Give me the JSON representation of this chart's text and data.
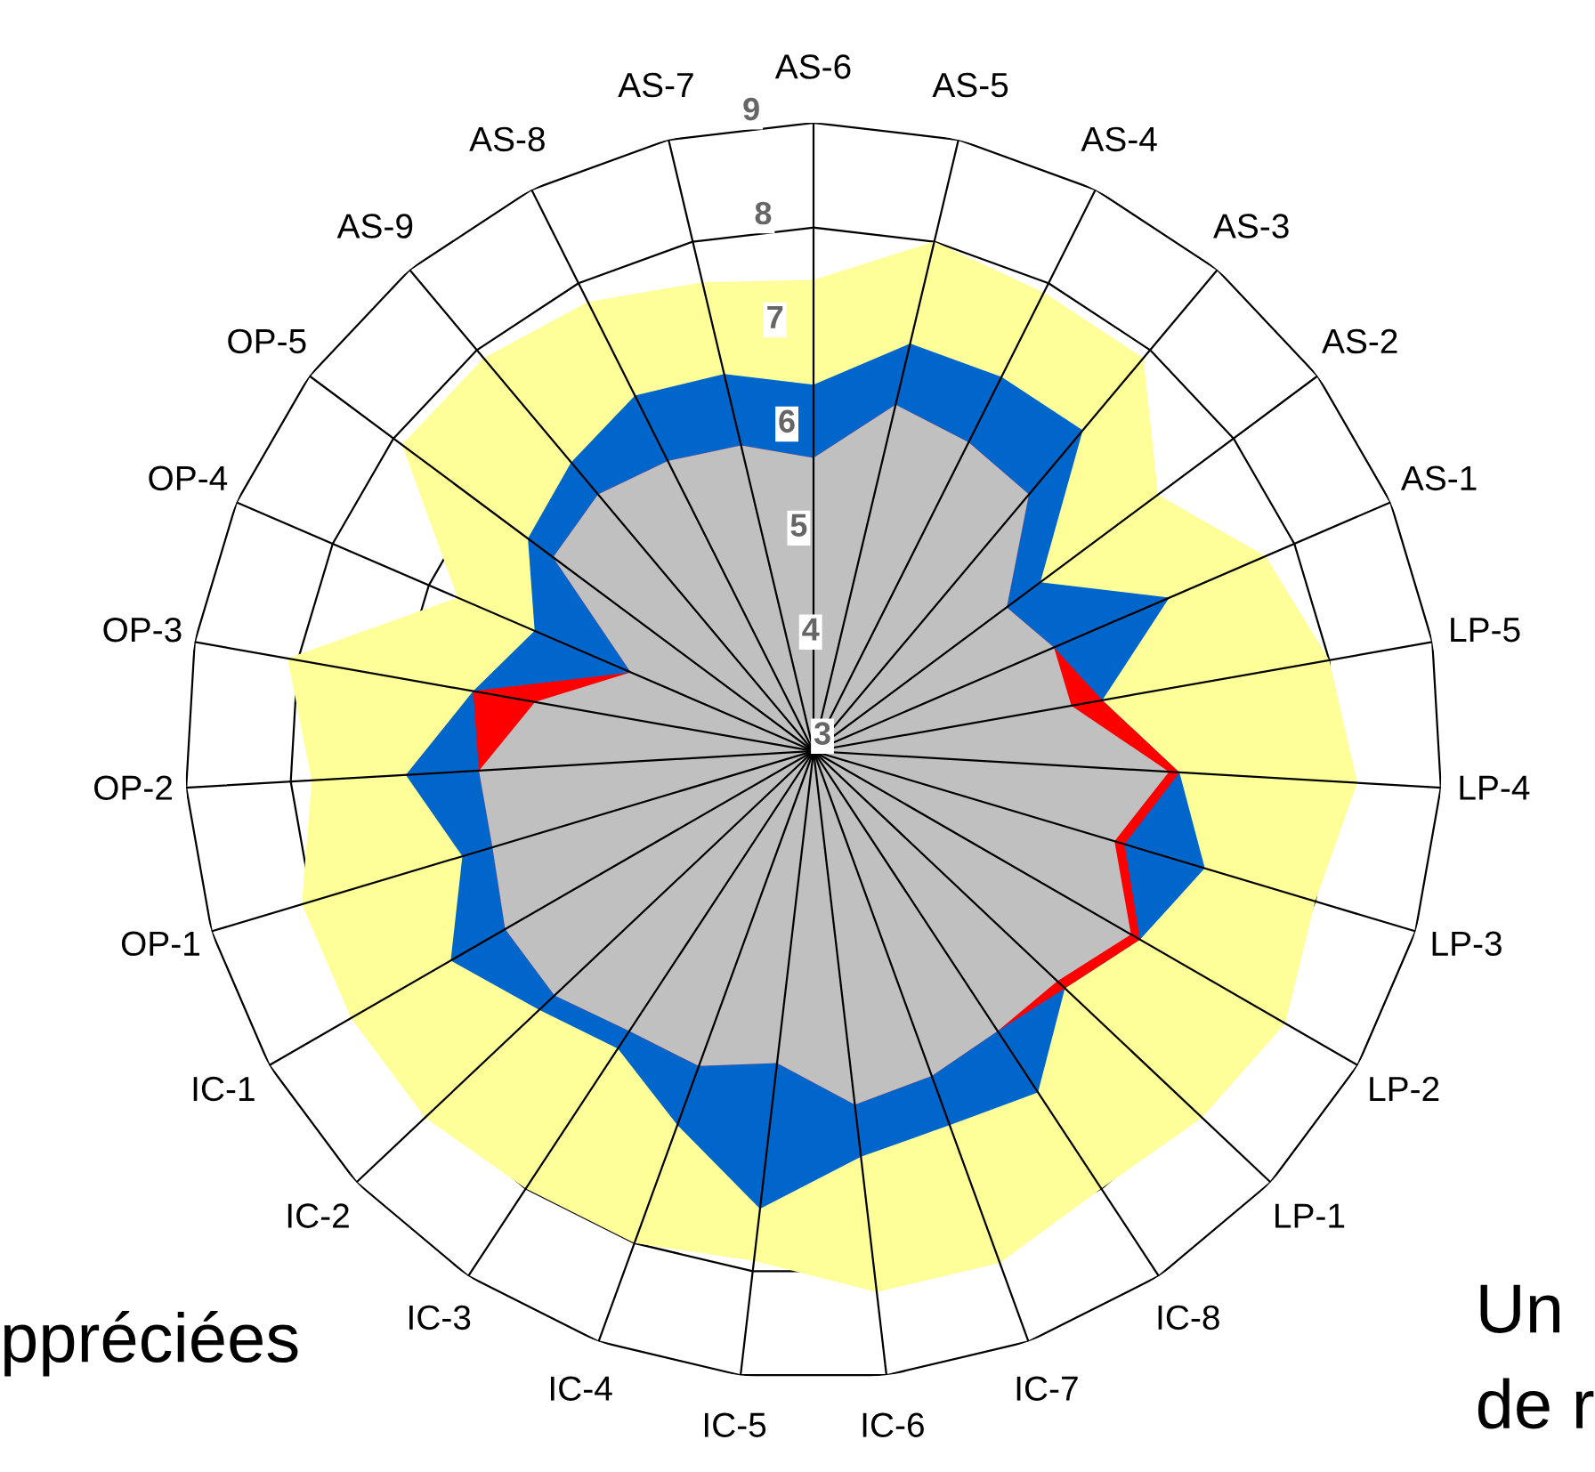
{
  "chart_data": {
    "type": "radar",
    "categories": [
      "AS-6",
      "AS-5",
      "AS-4",
      "AS-3",
      "AS-2",
      "AS-1",
      "LP-5",
      "LP-4",
      "LP-3",
      "LP-2",
      "LP-1",
      "IC-8",
      "IC-7",
      "IC-6",
      "IC-5",
      "IC-4",
      "IC-3",
      "IC-2",
      "IC-1",
      "OP-1",
      "OP-2",
      "OP-3",
      "OP-4",
      "OP-5",
      "AS-9",
      "AS-8",
      "AS-7"
    ],
    "series": [
      {
        "color": "#ffff99",
        "values": [
          7.5,
          8.0,
          7.9,
          7.9,
          7.1,
          7.7,
          8.0,
          8.2,
          8.0,
          8.2,
          8.1,
          8.0,
          8.2,
          8.2,
          7.9,
          8.0,
          8.0,
          8.1,
          8.1,
          8.1,
          7.8,
          8.1,
          6.7,
          7.9,
          7.9,
          7.8,
          7.6
        ]
      },
      {
        "color": "#0066cc",
        "values": [
          6.5,
          7.0,
          7.0,
          7.0,
          5.7,
          6.7,
          5.8,
          6.5,
          6.9,
          6.6,
          6.3,
          6.9,
          6.8,
          6.9,
          7.4,
          6.8,
          6.4,
          6.6,
          7.0,
          6.5,
          6.9,
          6.3,
          5.9,
          6.4,
          6.6,
          6.8,
          6.7
        ]
      },
      {
        "color": "#ff0000",
        "values": [
          5.8,
          6.4,
          6.3,
          6.2,
          5.3,
          5.5,
          5.8,
          6.5,
          6.1,
          6.6,
          6.3,
          6.2,
          6.3,
          6.4,
          6.0,
          6.2,
          6.2,
          6.4,
          6.4,
          6.2,
          6.2,
          6.3,
          4.9,
          6.1,
          6.2,
          6.1,
          6.0
        ]
      },
      {
        "color": "#c0c0c0",
        "values": [
          5.8,
          6.4,
          6.3,
          6.2,
          5.3,
          5.5,
          5.5,
          6.4,
          6.0,
          6.5,
          6.2,
          6.2,
          6.3,
          6.4,
          6.0,
          6.2,
          6.2,
          6.4,
          6.4,
          6.2,
          6.2,
          5.7,
          4.9,
          6.1,
          6.2,
          6.1,
          6.0
        ]
      }
    ],
    "ylim": [
      3,
      9
    ],
    "yticks": [
      3,
      4,
      5,
      6,
      7,
      8,
      9
    ],
    "grid": true,
    "annotations": [
      "ppréciées",
      "Un",
      "de r"
    ]
  }
}
